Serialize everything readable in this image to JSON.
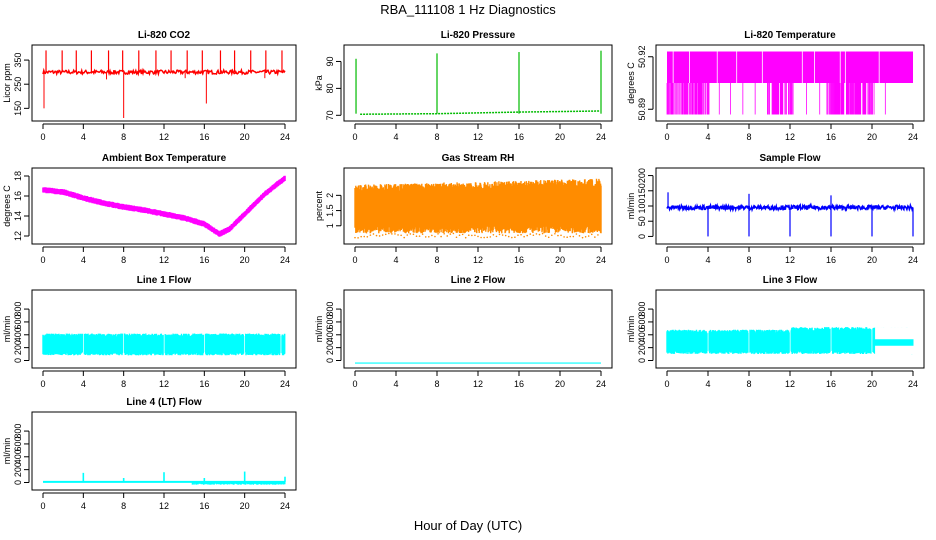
{
  "figure": {
    "title": "RBA_111108  1 Hz Diagnostics",
    "xlabel": "Hour of Day (UTC)"
  },
  "chart_data": [
    {
      "id": "co2",
      "type": "line",
      "title": "Li-820 CO2",
      "ylabel": "Licor ppm",
      "color": "#ff0000",
      "xlim": [
        0,
        24
      ],
      "xticks": [
        0,
        4,
        8,
        12,
        16,
        20,
        24
      ],
      "ylim": [
        110,
        400
      ],
      "yticks": [
        150,
        250,
        350
      ],
      "baseline": 300,
      "noise": 8,
      "spikes_up": [
        0.3,
        1.9,
        3.3,
        4.8,
        6.5,
        7.9,
        9.5,
        11.2,
        12.7,
        14.3,
        15.8,
        17.6,
        19.0,
        20.6,
        22.1,
        23.7
      ],
      "spike_up_value": 390,
      "spikes_down": [
        [
          0.1,
          150
        ],
        [
          8.0,
          110
        ],
        [
          16.2,
          170
        ],
        [
          6.3,
          270
        ],
        [
          14.1,
          275
        ],
        [
          22.0,
          275
        ]
      ]
    },
    {
      "id": "pressure",
      "type": "line",
      "title": "Li-820 Pressure",
      "ylabel": "kPa",
      "color": "#00bb00",
      "xlim": [
        0,
        24
      ],
      "xticks": [
        0,
        4,
        8,
        12,
        16,
        20,
        24
      ],
      "ylim": [
        69,
        95
      ],
      "yticks": [
        70,
        80,
        90
      ],
      "segments": [
        [
          0.5,
          70.4
        ],
        [
          8.0,
          70.6
        ],
        [
          12.0,
          70.9
        ],
        [
          16.0,
          71.2
        ],
        [
          20.0,
          71.4
        ],
        [
          23.9,
          71.6
        ]
      ],
      "spikes": [
        [
          0.1,
          91
        ],
        [
          8.0,
          93
        ],
        [
          16.0,
          93.5
        ],
        [
          24.0,
          94
        ]
      ]
    },
    {
      "id": "temperature",
      "type": "line",
      "title": "Li-820 Temperature",
      "ylabel": "degrees C",
      "color": "#ff00ff",
      "xlim": [
        0,
        24
      ],
      "xticks": [
        0,
        4,
        8,
        12,
        16,
        20,
        24
      ],
      "ylim": [
        50.885,
        50.925
      ],
      "yticks": [
        50.89,
        50.92
      ],
      "band": [
        50.905,
        50.923
      ],
      "low": 50.887,
      "dense_ranges": [
        [
          0,
          4.2
        ],
        [
          9.8,
          12.4
        ],
        [
          15.6,
          20.3
        ]
      ]
    },
    {
      "id": "ambient",
      "type": "line",
      "title": "Ambient Box Temperature",
      "ylabel": "degrees C",
      "color": "#ff00ff",
      "xlim": [
        0,
        24
      ],
      "xticks": [
        0,
        4,
        8,
        12,
        16,
        20,
        24
      ],
      "ylim": [
        11.5,
        18.5
      ],
      "yticks": [
        12,
        14,
        16,
        18
      ],
      "x": [
        0,
        2,
        4,
        6,
        8,
        10,
        12,
        14,
        16,
        17.5,
        18.5,
        20,
        22,
        24
      ],
      "y": [
        16.6,
        16.4,
        15.8,
        15.3,
        14.9,
        14.6,
        14.2,
        13.8,
        13.2,
        12.2,
        12.7,
        14.2,
        16.2,
        17.8
      ],
      "spread": 0.6
    },
    {
      "id": "rh",
      "type": "line",
      "title": "Gas Stream RH",
      "ylabel": "percent",
      "color": "#ff8c00",
      "xlim": [
        0,
        24
      ],
      "xticks": [
        0,
        4,
        8,
        12,
        16,
        20,
        24
      ],
      "ylim": [
        0.5,
        2.8
      ],
      "yticks": [
        1.0,
        1.5,
        2.0
      ],
      "lower": 0.75,
      "upper": 2.35,
      "upper_end": 2.55
    },
    {
      "id": "sample",
      "type": "line",
      "title": "Sample Flow",
      "ylabel": "ml/min",
      "color": "#0000ff",
      "xlim": [
        0,
        24
      ],
      "xticks": [
        0,
        4,
        8,
        12,
        16,
        20,
        24
      ],
      "ylim": [
        -15,
        215
      ],
      "yticks": [
        0,
        50,
        100,
        150,
        200
      ],
      "baseline": 95,
      "noise": 7,
      "dips": [
        4.0,
        8.0,
        12.0,
        16.0,
        20.0,
        24.0
      ],
      "peaks": [
        [
          0.1,
          145
        ],
        [
          8.0,
          140
        ],
        [
          16.0,
          135
        ]
      ]
    },
    {
      "id": "line1",
      "type": "line",
      "title": "Line 1 Flow",
      "ylabel": "ml/min",
      "color": "#00ffff",
      "xlim": [
        0,
        24
      ],
      "xticks": [
        0,
        4,
        8,
        12,
        16,
        20,
        24
      ],
      "ylim": [
        -70,
        1050
      ],
      "yticks": [
        0,
        200,
        400,
        600,
        800
      ],
      "lower": 80,
      "upper": 420,
      "gaps": [
        4.0,
        8.0,
        12.0,
        16.0,
        20.0,
        23.6
      ]
    },
    {
      "id": "line2",
      "type": "line",
      "title": "Line 2 Flow",
      "ylabel": "ml/min",
      "color": "#00ffff",
      "xlim": [
        0,
        24
      ],
      "xticks": [
        0,
        4,
        8,
        12,
        16,
        20,
        24
      ],
      "ylim": [
        -70,
        1050
      ],
      "yticks": [
        0,
        200,
        400,
        600,
        800
      ],
      "value": -40
    },
    {
      "id": "line3",
      "type": "line",
      "title": "Line 3 Flow",
      "ylabel": "ml/min",
      "color": "#00ffff",
      "xlim": [
        0,
        24
      ],
      "xticks": [
        0,
        4,
        8,
        12,
        16,
        20,
        24
      ],
      "ylim": [
        -70,
        1050
      ],
      "yticks": [
        0,
        200,
        400,
        600,
        800
      ],
      "lower": 100,
      "upper": 480,
      "upper_late": 520,
      "drop_at": 20.3,
      "after": [
        230,
        330
      ],
      "gaps": [
        4.0,
        8.0,
        12.0,
        16.0,
        20.0
      ]
    },
    {
      "id": "line4",
      "type": "line",
      "title": "Line 4 (LT) Flow",
      "ylabel": "ml/min",
      "color": "#00ffff",
      "xlim": [
        0,
        24
      ],
      "xticks": [
        0,
        4,
        8,
        12,
        16,
        20,
        24
      ],
      "ylim": [
        -70,
        1050
      ],
      "yticks": [
        0,
        200,
        400,
        600,
        800
      ],
      "baseline": 10,
      "spikes": [
        [
          4.0,
          150
        ],
        [
          8.0,
          70
        ],
        [
          12.0,
          160
        ],
        [
          16.0,
          70
        ],
        [
          20.0,
          170
        ],
        [
          24.0,
          90
        ]
      ],
      "noisy_from": 14.8
    }
  ]
}
